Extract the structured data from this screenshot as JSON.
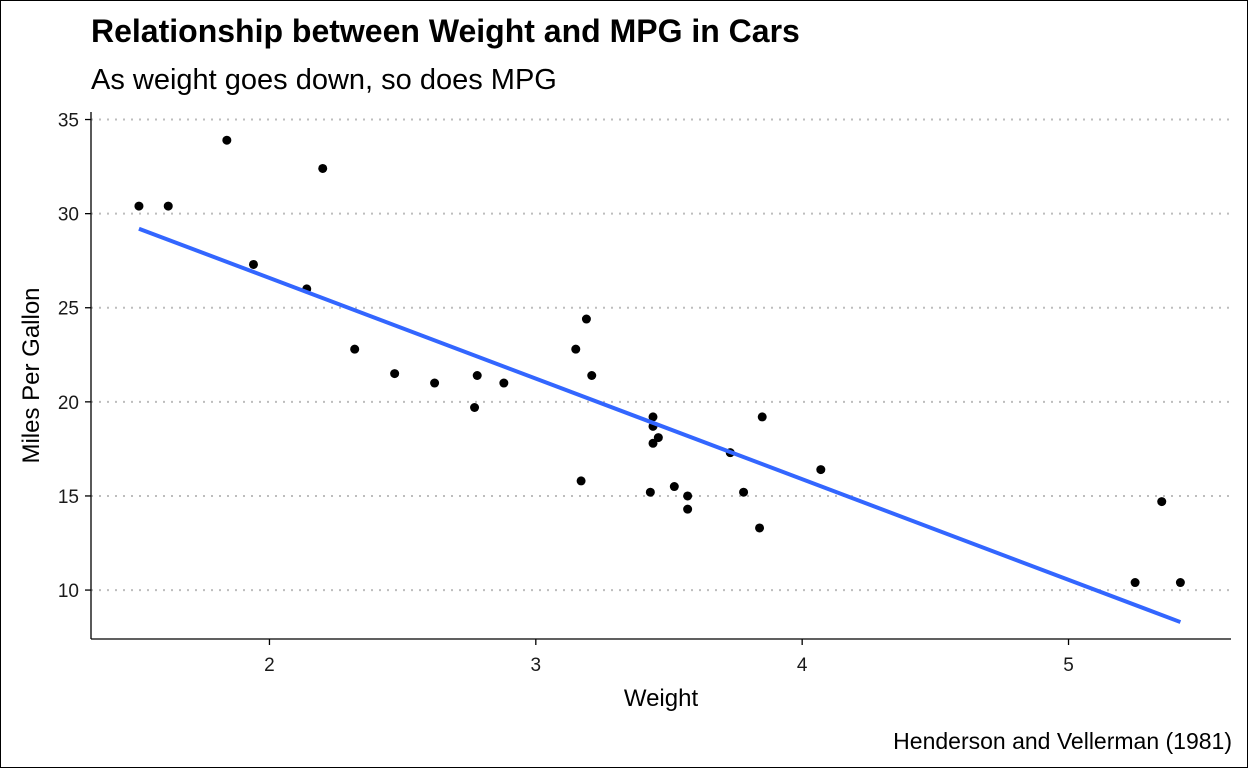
{
  "chart_data": {
    "type": "scatter",
    "title": "Relationship between Weight and MPG in Cars",
    "subtitle": "As weight goes down, so does MPG",
    "caption": "Henderson and Vellerman (1981)",
    "xlabel": "Weight",
    "ylabel": "Miles Per Gallon",
    "xlim": [
      1.33,
      5.61
    ],
    "ylim": [
      7.4,
      35.4
    ],
    "x_ticks": [
      2,
      3,
      4,
      5
    ],
    "y_ticks": [
      10,
      15,
      20,
      25,
      30,
      35
    ],
    "grid": "horizontal-dotted",
    "points": [
      {
        "x": 1.51,
        "y": 30.4
      },
      {
        "x": 1.62,
        "y": 30.4
      },
      {
        "x": 1.84,
        "y": 33.9
      },
      {
        "x": 1.94,
        "y": 27.3
      },
      {
        "x": 2.14,
        "y": 26.0
      },
      {
        "x": 2.2,
        "y": 32.4
      },
      {
        "x": 2.32,
        "y": 22.8
      },
      {
        "x": 2.47,
        "y": 21.5
      },
      {
        "x": 2.62,
        "y": 21.0
      },
      {
        "x": 2.77,
        "y": 19.7
      },
      {
        "x": 2.78,
        "y": 21.4
      },
      {
        "x": 2.88,
        "y": 21.0
      },
      {
        "x": 3.15,
        "y": 22.8
      },
      {
        "x": 3.17,
        "y": 15.8
      },
      {
        "x": 3.19,
        "y": 24.4
      },
      {
        "x": 3.21,
        "y": 21.4
      },
      {
        "x": 3.43,
        "y": 15.2
      },
      {
        "x": 3.44,
        "y": 19.2
      },
      {
        "x": 3.44,
        "y": 18.7
      },
      {
        "x": 3.44,
        "y": 17.8
      },
      {
        "x": 3.46,
        "y": 18.1
      },
      {
        "x": 3.52,
        "y": 15.5
      },
      {
        "x": 3.57,
        "y": 15.0
      },
      {
        "x": 3.57,
        "y": 14.3
      },
      {
        "x": 3.73,
        "y": 17.3
      },
      {
        "x": 3.78,
        "y": 15.2
      },
      {
        "x": 3.84,
        "y": 13.3
      },
      {
        "x": 3.85,
        "y": 19.2
      },
      {
        "x": 4.07,
        "y": 16.4
      },
      {
        "x": 5.25,
        "y": 10.4
      },
      {
        "x": 5.35,
        "y": 14.7
      },
      {
        "x": 5.42,
        "y": 10.4
      }
    ],
    "trend_line": {
      "color": "#3366ff",
      "x": [
        1.51,
        5.42
      ],
      "y": [
        29.2,
        8.3
      ]
    },
    "point_color": "#000000",
    "grid_color": "#bdbdbd"
  }
}
